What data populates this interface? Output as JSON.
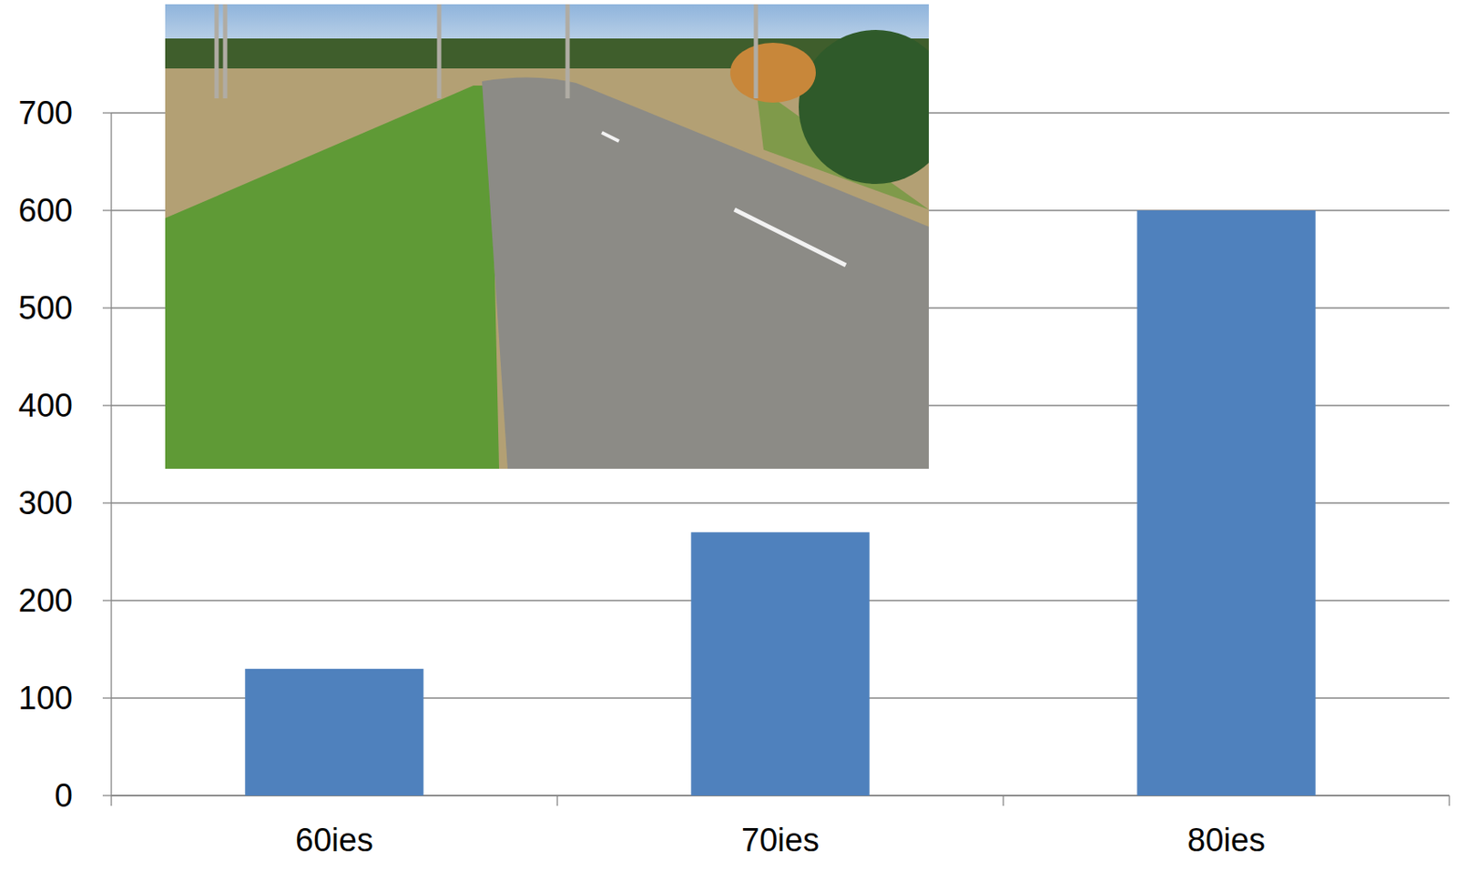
{
  "chart_data": {
    "type": "bar",
    "categories": [
      "60ies",
      "70ies",
      "80ies"
    ],
    "values": [
      130,
      270,
      600
    ],
    "color": "#4f81bd",
    "ylim": [
      0,
      700
    ],
    "yticks": [
      0,
      100,
      200,
      300,
      400,
      500,
      600,
      700
    ],
    "grid": true
  }
}
